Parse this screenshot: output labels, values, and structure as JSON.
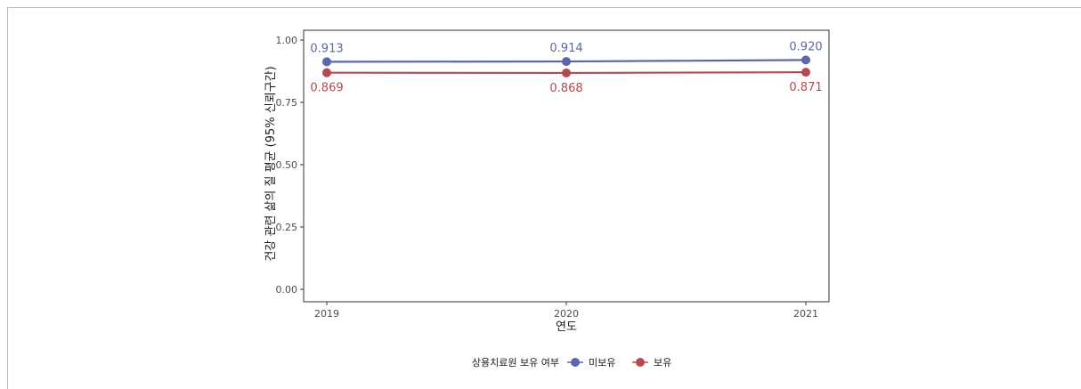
{
  "chart_data": {
    "type": "line",
    "x": [
      "2019",
      "2020",
      "2021"
    ],
    "xlabel": "연도",
    "ylabel": "건강 관련 삶의 질 평균 (95% 신뢰구간)",
    "ylim": [
      0,
      1.0
    ],
    "yticks": [
      "0.00",
      "0.25",
      "0.50",
      "0.75",
      "1.00"
    ],
    "grid": false,
    "legend": {
      "title": "상용치료원 보유 여부",
      "position": "bottom"
    },
    "series": [
      {
        "name": "미보유",
        "color": "#5b67a8",
        "values": [
          0.913,
          0.914,
          0.92
        ],
        "labels": [
          "0.913",
          "0.914",
          "0.920"
        ],
        "label_position": "above"
      },
      {
        "name": "보유",
        "color": "#b5494f",
        "values": [
          0.869,
          0.868,
          0.871
        ],
        "labels": [
          "0.869",
          "0.868",
          "0.871"
        ],
        "label_position": "below"
      }
    ]
  }
}
